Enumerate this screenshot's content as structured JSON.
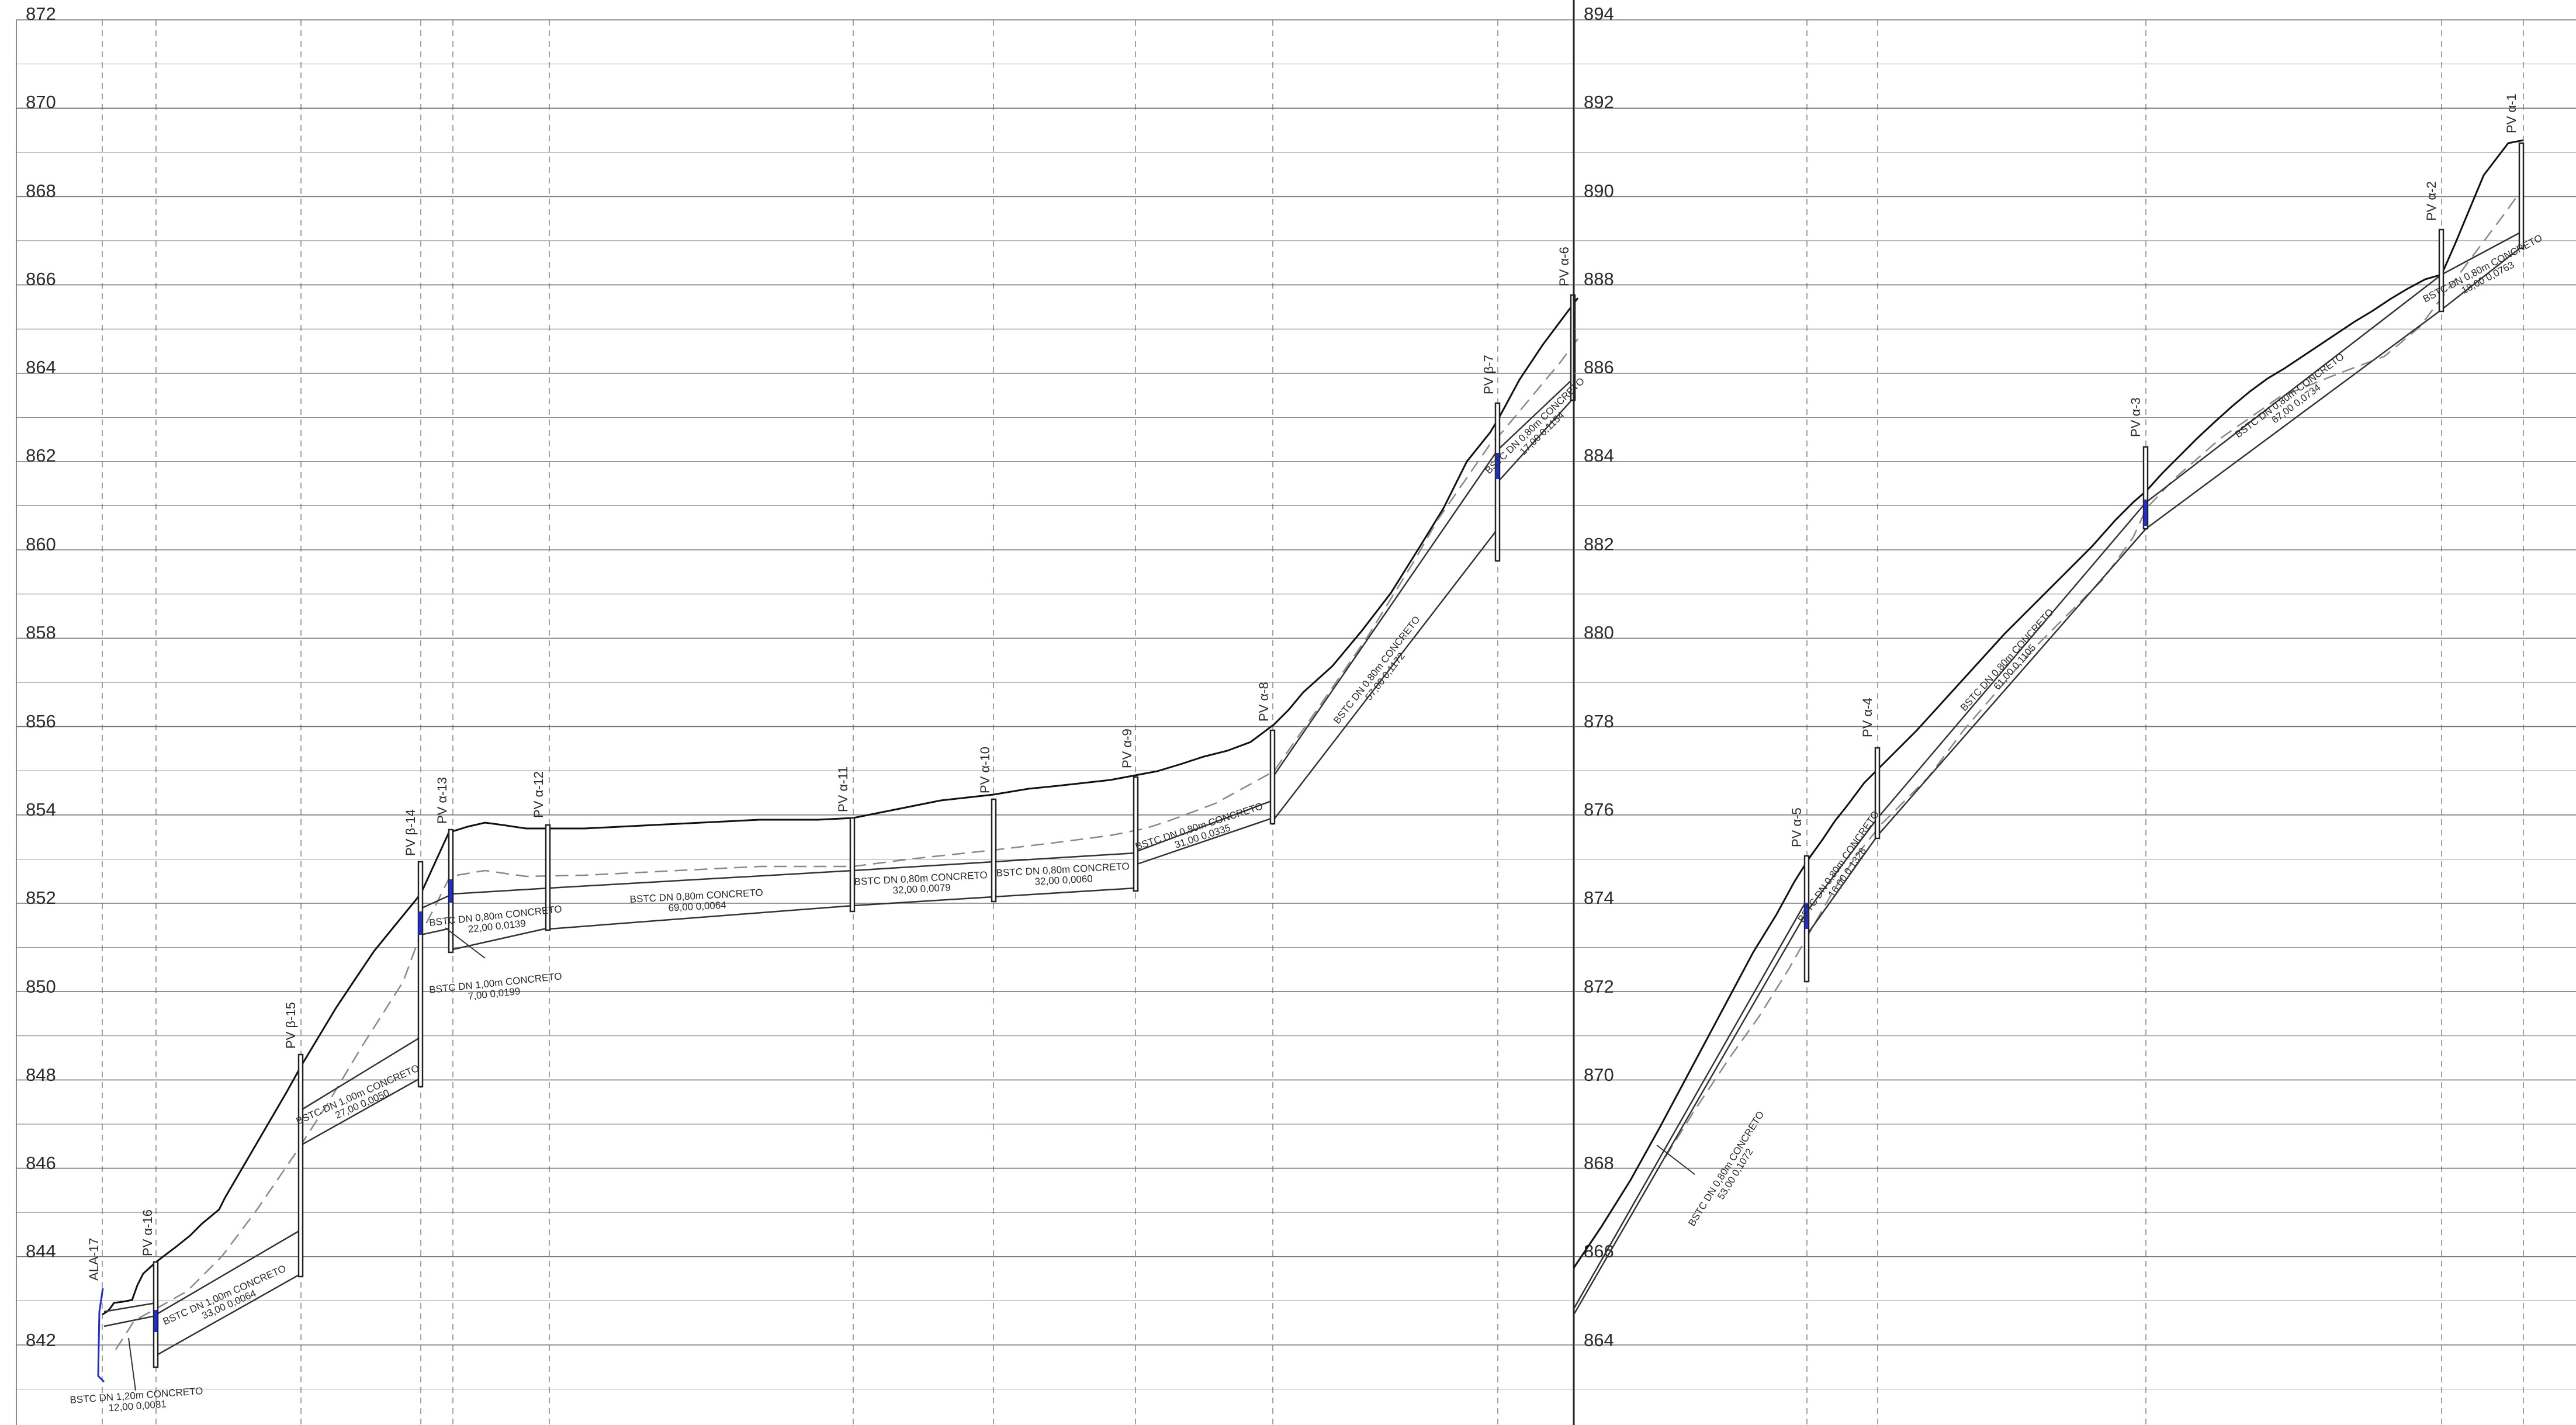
{
  "colors": {
    "grid": "#777777",
    "ground": "#111111",
    "pipe": "#333333",
    "dashed": "#888888",
    "marker": "#1f2fc8",
    "text": "#2b2b2b"
  },
  "left_panel": {
    "elevation_labels": [
      "872",
      "870",
      "868",
      "866",
      "864",
      "862",
      "860",
      "858",
      "856",
      "854",
      "852",
      "850",
      "848",
      "846",
      "844",
      "842"
    ],
    "manholes": [
      {
        "id": "ala17",
        "label": "ALA-17"
      },
      {
        "id": "pva16",
        "label": "PV α-16"
      },
      {
        "id": "pvb15",
        "label": "PV β-15"
      },
      {
        "id": "pvb14",
        "label": "PV β-14"
      },
      {
        "id": "pva13",
        "label": "PV α-13"
      },
      {
        "id": "pva12",
        "label": "PV α-12"
      },
      {
        "id": "pva11",
        "label": "PV α-11"
      },
      {
        "id": "pva10",
        "label": "PV α-10"
      },
      {
        "id": "pva9",
        "label": "PV α-9"
      },
      {
        "id": "pva8",
        "label": "PV α-8"
      },
      {
        "id": "pvb7",
        "label": "PV β-7"
      },
      {
        "id": "pva6",
        "label": "PV α-6"
      }
    ],
    "pipe_labels": [
      {
        "line1": "BSTC  DN  1,20m  CONCRETO",
        "line2": "12,00  0,0081"
      },
      {
        "line1": "BSTC  DN  1,00m  CONCRETO",
        "line2": "33,00  0,0064"
      },
      {
        "line1": "BSTC  DN  1,00m  CONCRETO",
        "line2": "27,00  0,0050"
      },
      {
        "line1": "BSTC  DN  0,80m  CONCRETO",
        "line2": "22,00  0,0139"
      },
      {
        "line1": "BSTC  DN  1,00m  CONCRETO",
        "line2": "7,00  0,0199"
      },
      {
        "line1": "BSTC  DN  0,80m  CONCRETO",
        "line2": "69,00  0,0064"
      },
      {
        "line1": "BSTC  DN  0,80m  CONCRETO",
        "line2": "32,00  0,0079"
      },
      {
        "line1": "BSTC  DN  0,80m  CONCRETO",
        "line2": "32,00  0,0060"
      },
      {
        "line1": "BSTC  DN  0,80m  CONCRETO",
        "line2": "31,00  0,0335"
      },
      {
        "line1": "BSTC  DN  0,80m  CONCRETO",
        "line2": "57,00  0,1172"
      },
      {
        "line1": "BSTC  DN  0,80m  CONCRETO",
        "line2": "17,00  0,1154"
      }
    ]
  },
  "right_panel": {
    "elevation_labels": [
      "894",
      "892",
      "890",
      "888",
      "886",
      "884",
      "882",
      "880",
      "878",
      "876",
      "874",
      "872",
      "870",
      "868",
      "866",
      "864"
    ],
    "manholes": [
      {
        "id": "pva5",
        "label": "PV α-5"
      },
      {
        "id": "pva4",
        "label": "PV α-4"
      },
      {
        "id": "pva3",
        "label": "PV α-3"
      },
      {
        "id": "pva2",
        "label": "PV α-2"
      },
      {
        "id": "pva1",
        "label": "PV α-1"
      }
    ],
    "pipe_labels": [
      {
        "line1": "BSTC  DN  0,80m  CONCRETO",
        "line2": "53,00  0,1072"
      },
      {
        "line1": "BSTC  DN  0,80m  CONCRETO",
        "line2": "16,00  0,1328"
      },
      {
        "line1": "BSTC  DN  0,80m  CONCRETO",
        "line2": "61,00  0,1105"
      },
      {
        "line1": "BSTC  DN  0,80m  CONCRETO",
        "line2": "67,00  0,0734"
      },
      {
        "line1": "BSTC  DN  0,80m  CONCRETO",
        "line2": "18,00  0,0763"
      }
    ]
  }
}
